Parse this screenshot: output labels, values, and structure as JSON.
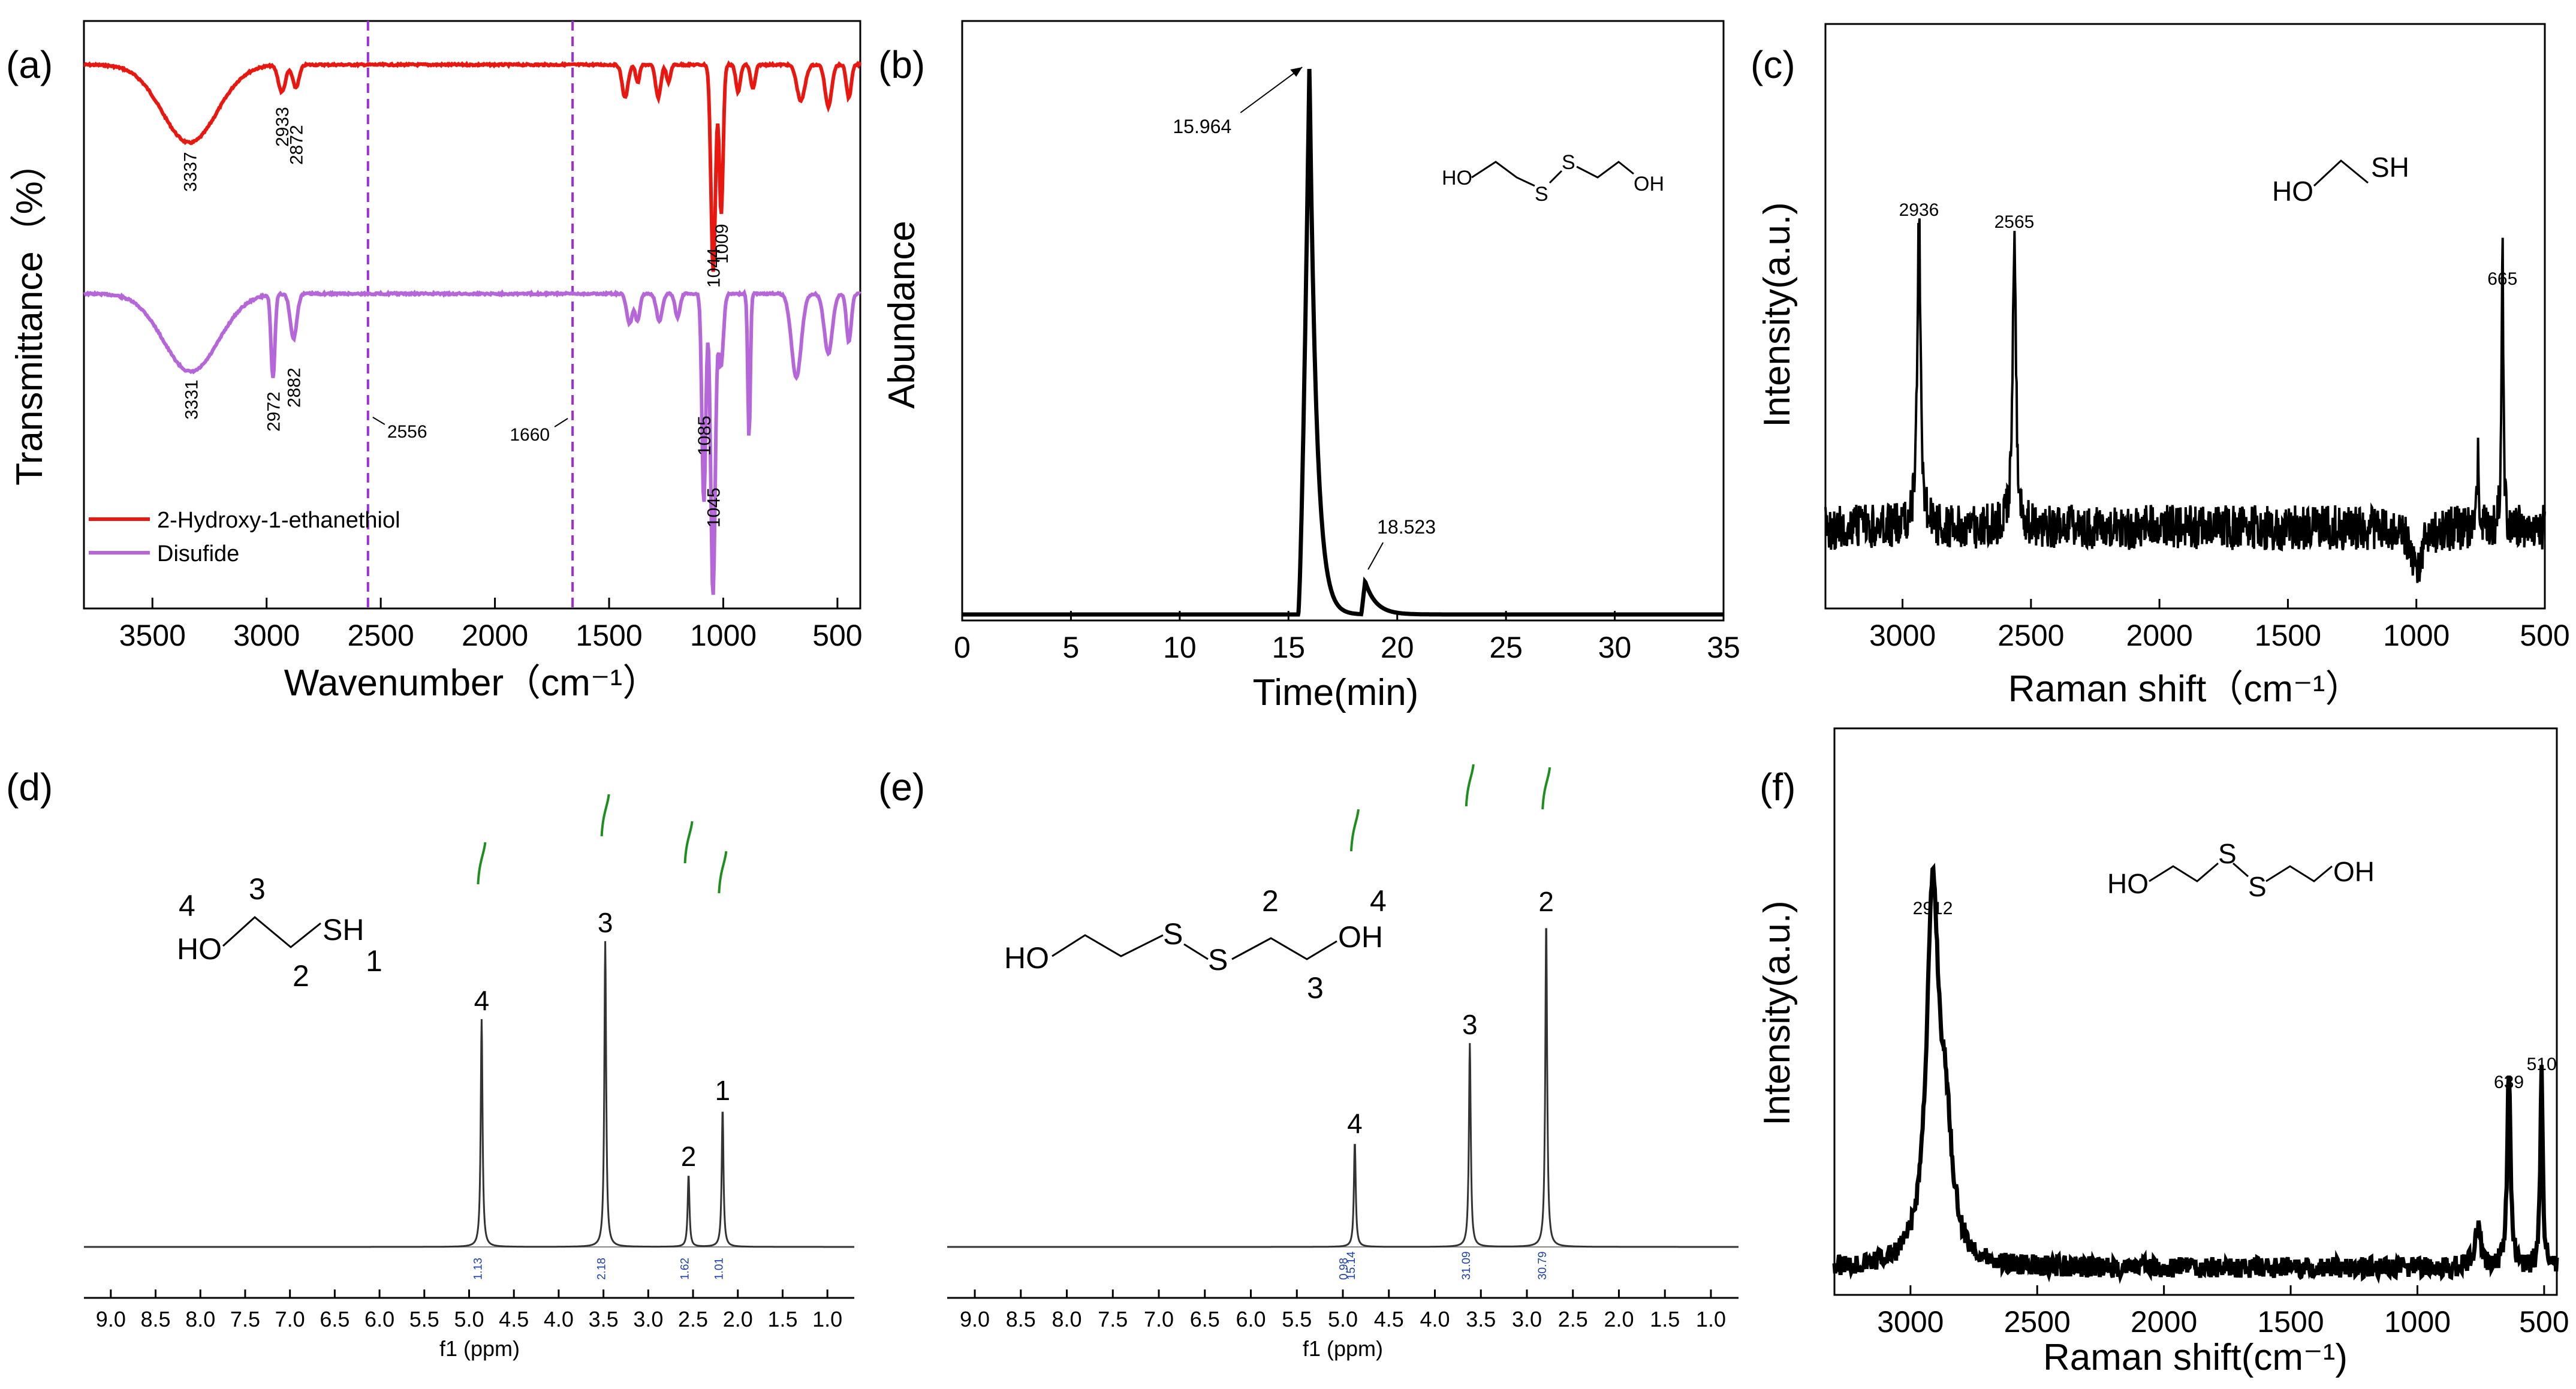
{
  "figure": {
    "panels": [
      "(a)",
      "(b)",
      "(c)",
      "(d)",
      "(e)",
      "(f)"
    ]
  },
  "chart_data": [
    {
      "id": "a",
      "panel_label": "(a)",
      "type": "line",
      "title": "",
      "xlabel": "Wavenumber（cm⁻¹）",
      "ylabel": "Transmittance（%）",
      "xlim": [
        3800,
        400
      ],
      "x_ticks": [
        "3500",
        "3000",
        "2500",
        "2000",
        "1500",
        "1000",
        "500"
      ],
      "x_tick_values": [
        3500,
        3000,
        2500,
        2000,
        1500,
        1000,
        500
      ],
      "vlines": [
        2556,
        1660
      ],
      "colors": {
        "thiol": "#e8170f",
        "disulfide": "#b566d8",
        "guide": "#9b30d8"
      },
      "legend": [
        "2-Hydroxy-1-ethanethiol",
        "Disufide"
      ],
      "series": [
        {
          "name": "2-Hydroxy-1-ethanethiol",
          "peaks": [
            {
              "x": 3337,
              "label": "3337"
            },
            {
              "x": 2933,
              "label": "2933"
            },
            {
              "x": 2872,
              "label": "2872"
            },
            {
              "x": 1044,
              "label": "1044"
            },
            {
              "x": 1009,
              "label": "1009"
            }
          ]
        },
        {
          "name": "Disufide",
          "peaks": [
            {
              "x": 3331,
              "label": "3331"
            },
            {
              "x": 2972,
              "label": "2972"
            },
            {
              "x": 2882,
              "label": "2882"
            },
            {
              "x": 1085,
              "label": "1085"
            },
            {
              "x": 1045,
              "label": "1045"
            }
          ]
        }
      ],
      "annotations": [
        {
          "x": 2556,
          "label": "2556"
        },
        {
          "x": 1660,
          "label": "1660"
        }
      ]
    },
    {
      "id": "b",
      "panel_label": "(b)",
      "type": "line",
      "xlabel": "Time(min)",
      "ylabel": "Abundance",
      "xlim": [
        0,
        35
      ],
      "x_ticks": [
        "0",
        "5",
        "10",
        "15",
        "20",
        "25",
        "30",
        "35"
      ],
      "x_tick_values": [
        0,
        5,
        10,
        15,
        20,
        25,
        30,
        35
      ],
      "peaks": [
        {
          "x": 15.964,
          "label": "15.964"
        },
        {
          "x": 18.523,
          "label": "18.523"
        }
      ],
      "structure": {
        "left": "HO",
        "s1": "S",
        "s2": "S",
        "right": "OH"
      }
    },
    {
      "id": "c",
      "panel_label": "(c)",
      "type": "line",
      "xlabel": "Raman shift（cm⁻¹）",
      "ylabel": "Intensity(a.u.)",
      "xlim": [
        3300,
        500
      ],
      "x_ticks": [
        "3000",
        "2500",
        "2000",
        "1500",
        "1000",
        "500"
      ],
      "x_tick_values": [
        3000,
        2500,
        2000,
        1500,
        1000,
        500
      ],
      "peaks": [
        {
          "x": 2936,
          "label": "2936"
        },
        {
          "x": 2565,
          "label": "2565"
        },
        {
          "x": 665,
          "label": "665"
        }
      ],
      "structure": {
        "left": "HO",
        "right": "SH"
      }
    },
    {
      "id": "d",
      "panel_label": "(d)",
      "type": "line",
      "xlabel": "f1 (ppm)",
      "xlim": [
        9.3,
        0.7
      ],
      "x_ticks": [
        "9.0",
        "8.5",
        "8.0",
        "7.5",
        "7.0",
        "6.5",
        "6.0",
        "5.5",
        "5.0",
        "4.5",
        "4.0",
        "3.5",
        "3.0",
        "2.5",
        "2.0",
        "1.5",
        "1.0"
      ],
      "x_tick_values": [
        9.0,
        8.5,
        8.0,
        7.5,
        7.0,
        6.5,
        6.0,
        5.5,
        5.0,
        4.5,
        4.0,
        3.5,
        3.0,
        2.5,
        2.0,
        1.5,
        1.0
      ],
      "peaks": [
        {
          "x": 4.86,
          "label": "4",
          "integral": "1.13"
        },
        {
          "x": 3.48,
          "label": "3",
          "integral": "2.18"
        },
        {
          "x": 2.55,
          "label": "2",
          "integral": "1.62"
        },
        {
          "x": 2.17,
          "label": "1",
          "integral": "1.01"
        }
      ],
      "structure": {
        "left": "HO",
        "right": "SH",
        "n4": "4",
        "n3": "3",
        "n2": "2",
        "n1": "1"
      }
    },
    {
      "id": "e",
      "panel_label": "(e)",
      "type": "line",
      "xlabel": "f1 (ppm)",
      "xlim": [
        9.3,
        0.7
      ],
      "x_ticks": [
        "9.0",
        "8.5",
        "8.0",
        "7.5",
        "7.0",
        "6.5",
        "6.0",
        "5.5",
        "5.0",
        "4.5",
        "4.0",
        "3.5",
        "3.0",
        "2.5",
        "2.0",
        "1.5",
        "1.0"
      ],
      "x_tick_values": [
        9.0,
        8.5,
        8.0,
        7.5,
        7.0,
        6.5,
        6.0,
        5.5,
        5.0,
        4.5,
        4.0,
        3.5,
        3.0,
        2.5,
        2.0,
        1.5,
        1.0
      ],
      "peaks": [
        {
          "x": 4.87,
          "label": "4",
          "integral": "15.14"
        },
        {
          "x": 3.62,
          "label": "3",
          "integral": "31.09"
        },
        {
          "x": 2.79,
          "label": "2",
          "integral": "30.79"
        }
      ],
      "extra_integral": "0.98",
      "structure": {
        "left": "HO",
        "s1": "S",
        "s2": "S",
        "right": "OH",
        "n2": "2",
        "n4": "4",
        "n3": "3"
      }
    },
    {
      "id": "f",
      "panel_label": "(f)",
      "type": "line",
      "xlabel": "Raman shift(cm⁻¹)",
      "ylabel": "Intensity(a.u.)",
      "xlim": [
        3300,
        450
      ],
      "x_ticks": [
        "3000",
        "2500",
        "2000",
        "1500",
        "1000",
        "500"
      ],
      "x_tick_values": [
        3000,
        2500,
        2000,
        1500,
        1000,
        500
      ],
      "peaks": [
        {
          "x": 2912,
          "label": "2912"
        },
        {
          "x": 639,
          "label": "639"
        },
        {
          "x": 510,
          "label": "510"
        }
      ],
      "structure": {
        "left": "HO",
        "s1": "S",
        "s2": "S",
        "right": "OH"
      }
    }
  ]
}
